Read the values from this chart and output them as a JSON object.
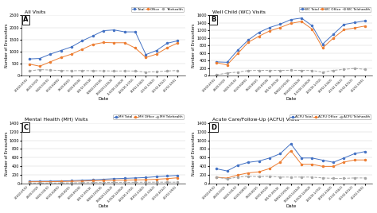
{
  "dates": [
    "3/16/20-4/5/20",
    "4/6/20-5/3/20",
    "5/4/20-5/31/20",
    "6/1/20-6/28/20",
    "7/6/20-8/2/20",
    "8/3/20-8/30/20",
    "8/31/20-9/27/20",
    "9/28/20-10/25/20",
    "10/26/20-11/22/20",
    "11/23/20-12/20/20",
    "12/21/20-1/17/21",
    "1/18/21-2/14/21",
    "2/15/21-3/14/21",
    "3/15/21-4/11/21",
    "4/12/21-5/9/21"
  ],
  "total_A": [
    700,
    720,
    900,
    1050,
    1200,
    1450,
    1650,
    1870,
    1900,
    1820,
    1820,
    880,
    1050,
    1350,
    1450
  ],
  "office_A": [
    490,
    400,
    580,
    760,
    900,
    1100,
    1300,
    1380,
    1370,
    1370,
    1150,
    760,
    900,
    1160,
    1360
  ],
  "telehealth_A": [
    200,
    260,
    240,
    220,
    210,
    220,
    210,
    210,
    200,
    205,
    200,
    155,
    175,
    200,
    225
  ],
  "total_B": [
    370,
    360,
    680,
    950,
    1150,
    1280,
    1370,
    1490,
    1530,
    1330,
    840,
    1100,
    1360,
    1410,
    1460
  ],
  "office_B": [
    350,
    290,
    590,
    890,
    1050,
    1190,
    1280,
    1390,
    1440,
    1240,
    740,
    1000,
    1220,
    1270,
    1320
  ],
  "telehealth_B": [
    25,
    75,
    100,
    140,
    145,
    145,
    145,
    148,
    145,
    142,
    98,
    145,
    172,
    198,
    172
  ],
  "total_C": [
    50,
    52,
    54,
    58,
    65,
    75,
    85,
    98,
    110,
    118,
    128,
    138,
    158,
    172,
    188
  ],
  "office_C": [
    40,
    41,
    42,
    45,
    50,
    57,
    62,
    68,
    72,
    78,
    82,
    88,
    97,
    112,
    132
  ],
  "telehealth_C": [
    8,
    9,
    10,
    11,
    14,
    17,
    20,
    22,
    25,
    26,
    27,
    29,
    30,
    30,
    30
  ],
  "total_D": [
    340,
    290,
    420,
    490,
    520,
    590,
    690,
    920,
    590,
    590,
    540,
    490,
    590,
    690,
    740
  ],
  "office_D": [
    145,
    125,
    195,
    245,
    270,
    345,
    495,
    760,
    445,
    445,
    395,
    395,
    495,
    545,
    545
  ],
  "telehealth_D": [
    145,
    105,
    148,
    165,
    158,
    165,
    148,
    148,
    148,
    148,
    128,
    118,
    118,
    128,
    128
  ],
  "color_total": "#4472C4",
  "color_office": "#ED7D31",
  "color_telehealth": "#A5A5A5",
  "ylabel": "Number of Encounters",
  "xlabel": "Date",
  "title_A": "All Visits",
  "title_B": "Well Child (WC) Visits",
  "title_C": "Mental Health (MH) Visits",
  "title_D": "Acute Care/Follow-Up (ACFU) Visits",
  "labels_A": [
    "A",
    "Total",
    "Office",
    "Telehealth"
  ],
  "labels_B": [
    "B",
    "WC Total",
    "WC Office",
    "WC Telehealth"
  ],
  "labels_C": [
    "C",
    "MH Total",
    "MH Office",
    "MH Telehealth"
  ],
  "labels_D": [
    "D",
    "ACFU Total",
    "ACFU Office",
    "ACFU Telehealth"
  ],
  "ylim_A": [
    0,
    2500
  ],
  "ylim_B": [
    0,
    1600
  ],
  "ylim_C": [
    0,
    1400
  ],
  "ylim_D": [
    0,
    1400
  ],
  "yticks_A": [
    0,
    500,
    1000,
    1500,
    2000,
    2500
  ],
  "yticks_B": [
    0,
    200,
    400,
    600,
    800,
    1000,
    1200,
    1400,
    1600
  ],
  "yticks_C": [
    0,
    200,
    400,
    600,
    800,
    1000,
    1200,
    1400
  ],
  "yticks_D": [
    0,
    200,
    400,
    600,
    800,
    1000,
    1200,
    1400
  ]
}
